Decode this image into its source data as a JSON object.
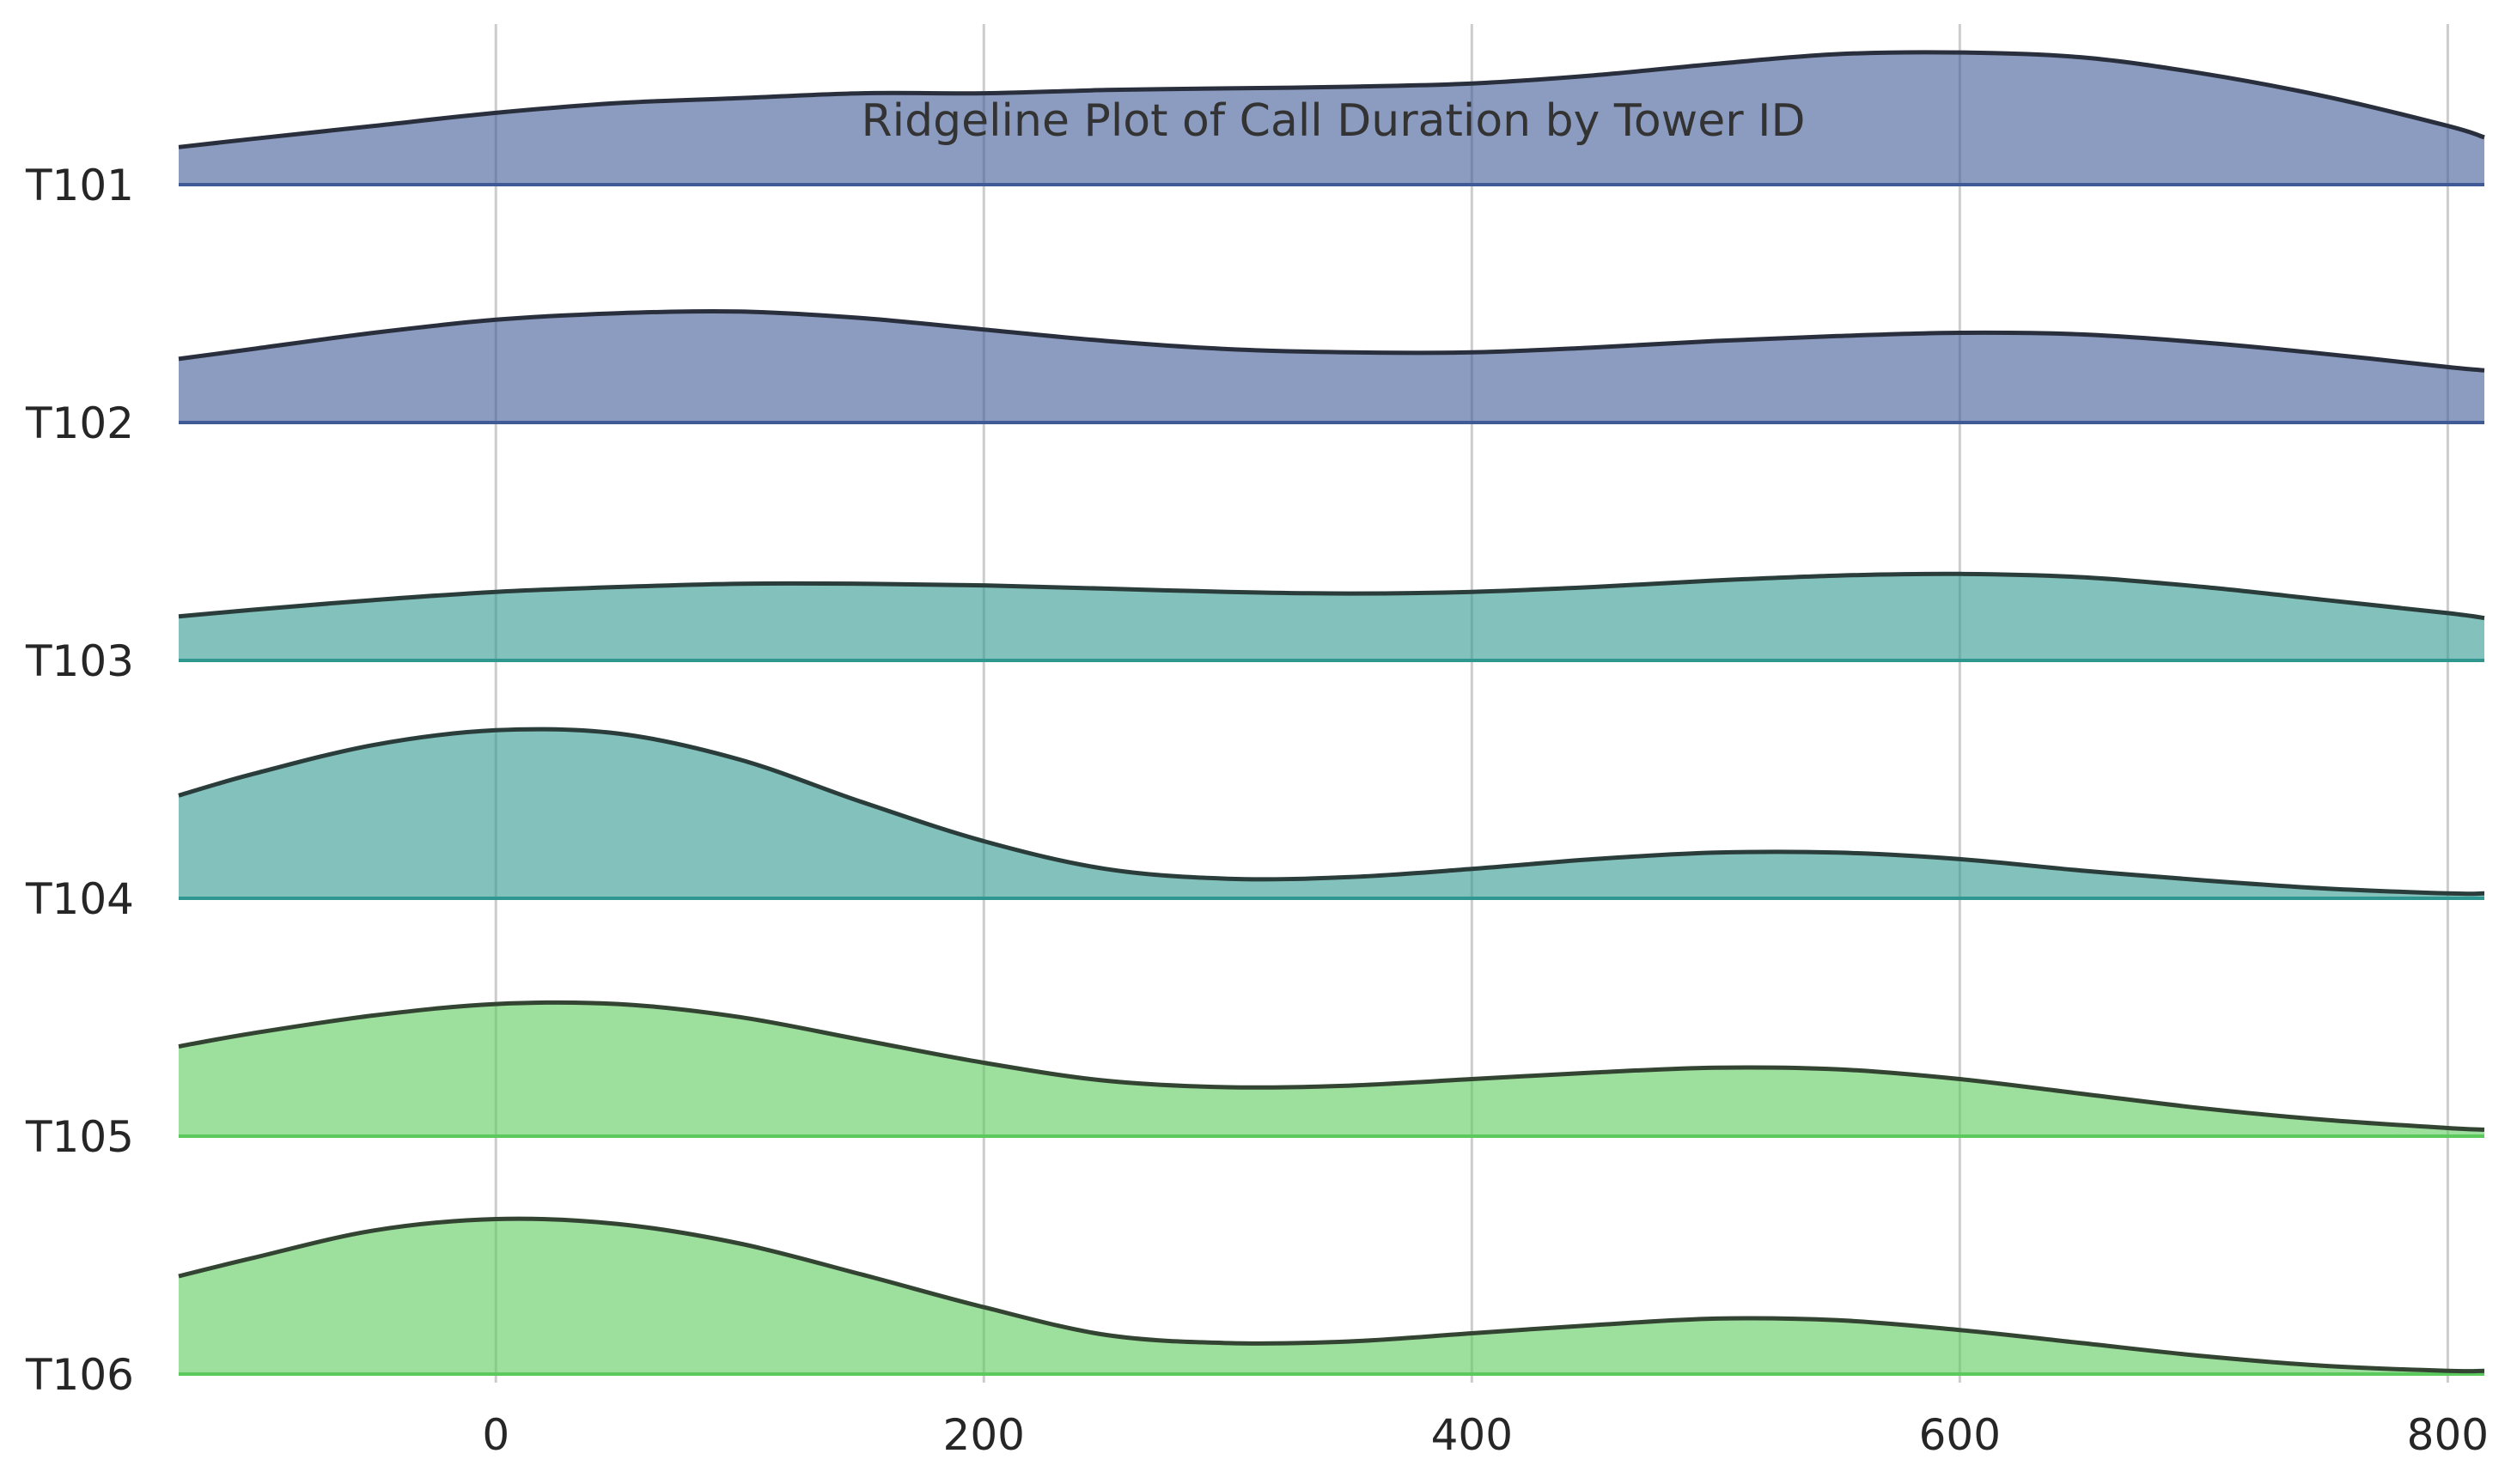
{
  "chart_data": {
    "type": "area",
    "subtype": "ridgeline",
    "title": "Ridgeline Plot of Call Duration by Tower ID",
    "xlabel": "",
    "ylabel": "",
    "xlim": [
      -130,
      815
    ],
    "x_ticks": [
      0,
      200,
      400,
      600,
      800
    ],
    "grid": true,
    "x": [
      -130,
      -100,
      -50,
      0,
      50,
      100,
      150,
      200,
      250,
      300,
      350,
      400,
      450,
      500,
      550,
      600,
      650,
      700,
      750,
      800,
      815
    ],
    "series": [
      {
        "name": "T101",
        "color": "#3f5a96",
        "line_color": "#2a2f3d",
        "values": [
          0.23,
          0.28,
          0.36,
          0.44,
          0.5,
          0.53,
          0.56,
          0.56,
          0.58,
          0.59,
          0.6,
          0.62,
          0.67,
          0.74,
          0.8,
          0.81,
          0.78,
          0.68,
          0.54,
          0.36,
          0.29
        ]
      },
      {
        "name": "T102",
        "color": "#3f5a96",
        "line_color": "#2a2f3d",
        "values": [
          0.39,
          0.45,
          0.55,
          0.63,
          0.67,
          0.68,
          0.64,
          0.57,
          0.5,
          0.45,
          0.43,
          0.43,
          0.46,
          0.5,
          0.53,
          0.55,
          0.54,
          0.49,
          0.42,
          0.34,
          0.32
        ]
      },
      {
        "name": "T103",
        "color": "#2f978f",
        "line_color": "#2a3d3b",
        "values": [
          0.27,
          0.31,
          0.37,
          0.42,
          0.45,
          0.47,
          0.47,
          0.46,
          0.44,
          0.42,
          0.41,
          0.42,
          0.45,
          0.49,
          0.52,
          0.53,
          0.51,
          0.45,
          0.37,
          0.29,
          0.26
        ]
      },
      {
        "name": "T104",
        "color": "#2f978f",
        "line_color": "#2a3d3b",
        "values": [
          0.63,
          0.76,
          0.94,
          1.03,
          1.01,
          0.85,
          0.59,
          0.35,
          0.18,
          0.12,
          0.13,
          0.18,
          0.24,
          0.28,
          0.28,
          0.24,
          0.17,
          0.11,
          0.06,
          0.03,
          0.03
        ]
      },
      {
        "name": "T105",
        "color": "#5cc95c",
        "line_color": "#334433",
        "values": [
          0.55,
          0.63,
          0.74,
          0.81,
          0.81,
          0.73,
          0.59,
          0.45,
          0.34,
          0.3,
          0.31,
          0.35,
          0.39,
          0.42,
          0.41,
          0.35,
          0.26,
          0.17,
          0.1,
          0.05,
          0.04
        ]
      },
      {
        "name": "T106",
        "color": "#5cc95c",
        "line_color": "#334433",
        "values": [
          0.6,
          0.71,
          0.88,
          0.95,
          0.92,
          0.8,
          0.61,
          0.41,
          0.24,
          0.19,
          0.2,
          0.25,
          0.3,
          0.34,
          0.33,
          0.27,
          0.19,
          0.11,
          0.05,
          0.02,
          0.02
        ]
      }
    ]
  }
}
